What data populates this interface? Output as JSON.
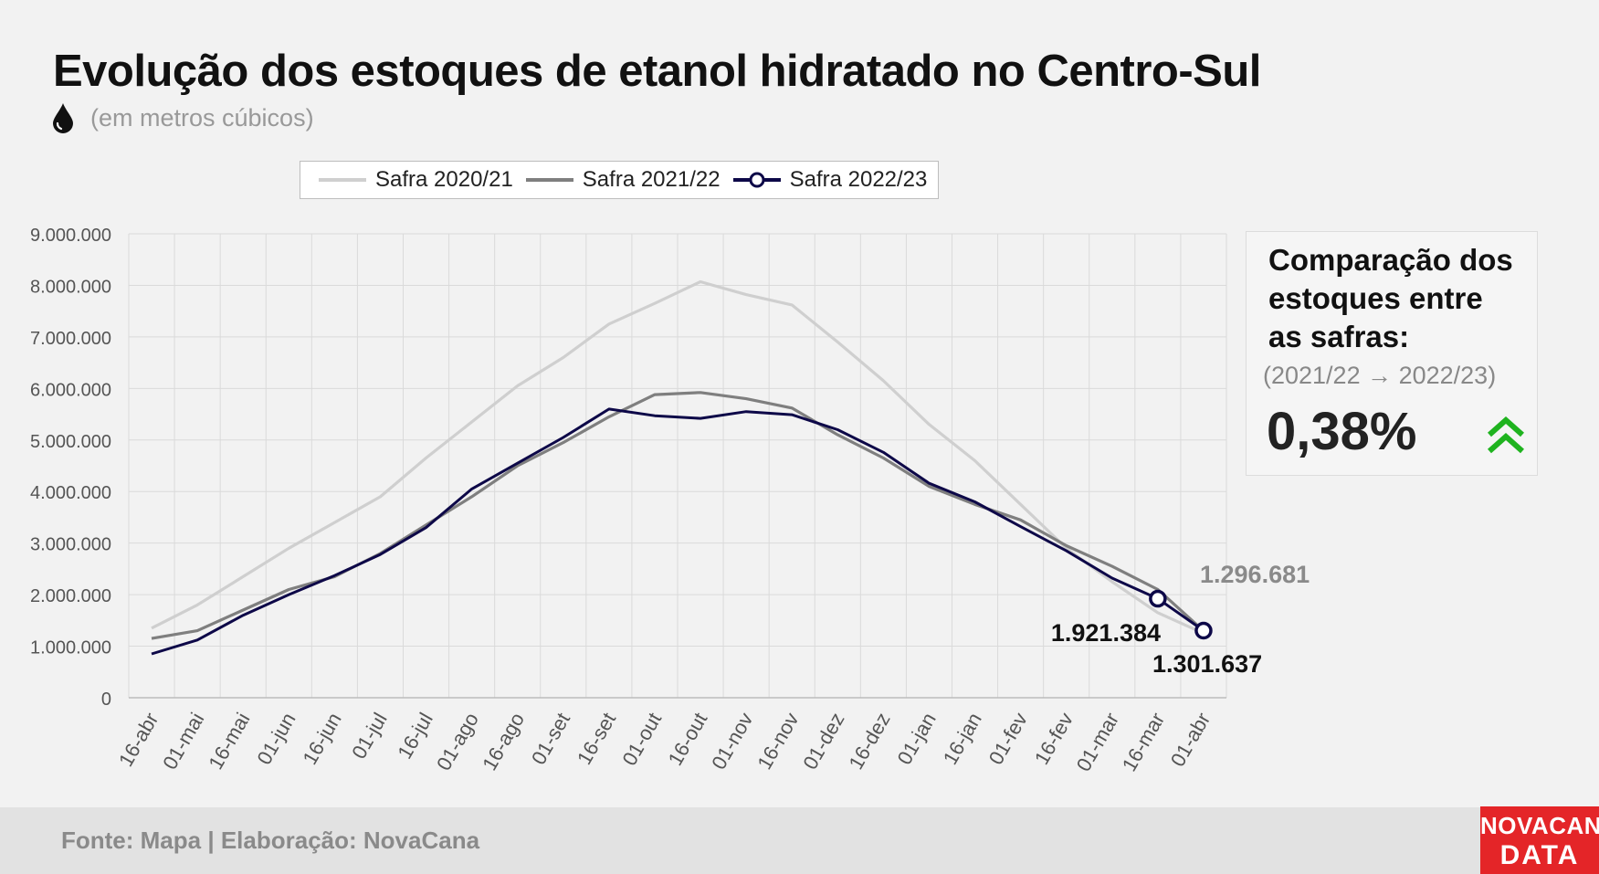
{
  "header": {
    "title": "Evolução dos estoques de etanol hidratado no Centro-Sul",
    "subtitle": "(em metros cúbicos)",
    "subtitle_icon": "drop-icon"
  },
  "comparison": {
    "title": "Comparação dos estoques entre as safras:",
    "period": "(2021/22 → 2022/23)",
    "value": "0,38%",
    "trend_icon": "double-chevron-up-icon",
    "trend_color": "#1fb31f"
  },
  "footer": {
    "source": "Fonte: Mapa | Elaboração: NovaCana",
    "brand_line1": "NOVACANA",
    "brand_line2": "DATA",
    "brand_color": "#e42528"
  },
  "chart_data": {
    "type": "line",
    "categories": [
      "16-abr",
      "01-mai",
      "16-mai",
      "01-jun",
      "16-jun",
      "01-jul",
      "16-jul",
      "01-ago",
      "16-ago",
      "01-set",
      "16-set",
      "01-out",
      "16-out",
      "01-nov",
      "16-nov",
      "01-dez",
      "16-dez",
      "01-jan",
      "16-jan",
      "01-fev",
      "16-fev",
      "01-mar",
      "16-mar",
      "01-abr"
    ],
    "ylim": [
      0,
      9000000
    ],
    "y_ticks": [
      "0",
      "1.000.000",
      "2.000.000",
      "3.000.000",
      "4.000.000",
      "5.000.000",
      "6.000.000",
      "7.000.000",
      "8.000.000",
      "9.000.000"
    ],
    "grid": true,
    "legend_position": "top",
    "series": [
      {
        "name": "Safra 2020/21",
        "color": "#cfcfcf",
        "markers": false,
        "values": [
          1350000,
          1800000,
          2350000,
          2900000,
          3400000,
          3900000,
          4650000,
          5350000,
          6050000,
          6600000,
          7250000,
          7650000,
          8070000,
          7820000,
          7620000,
          6900000,
          6150000,
          5300000,
          4600000,
          3750000,
          2900000,
          2250000,
          1650000,
          1250000
        ]
      },
      {
        "name": "Safra 2021/22",
        "color": "#7f7f7f",
        "markers": false,
        "values": [
          1150000,
          1300000,
          1700000,
          2100000,
          2350000,
          2800000,
          3350000,
          3900000,
          4500000,
          4950000,
          5450000,
          5880000,
          5920000,
          5800000,
          5620000,
          5100000,
          4650000,
          4100000,
          3750000,
          3450000,
          2950000,
          2550000,
          2100000,
          1296681
        ]
      },
      {
        "name": "Safra 2022/23",
        "color": "#0d0848",
        "markers": true,
        "values": [
          850000,
          1120000,
          1600000,
          2000000,
          2370000,
          2780000,
          3300000,
          4050000,
          4550000,
          5050000,
          5600000,
          5470000,
          5420000,
          5550000,
          5490000,
          5200000,
          4760000,
          4160000,
          3800000,
          3320000,
          2850000,
          2320000,
          1921384,
          1301637
        ]
      }
    ],
    "annotations": [
      {
        "text": "1.296.681",
        "series": "Safra 2021/22"
      },
      {
        "text": "1.921.384",
        "series": "Safra 2022/23"
      },
      {
        "text": "1.301.637",
        "series": "Safra 2022/23"
      }
    ]
  }
}
